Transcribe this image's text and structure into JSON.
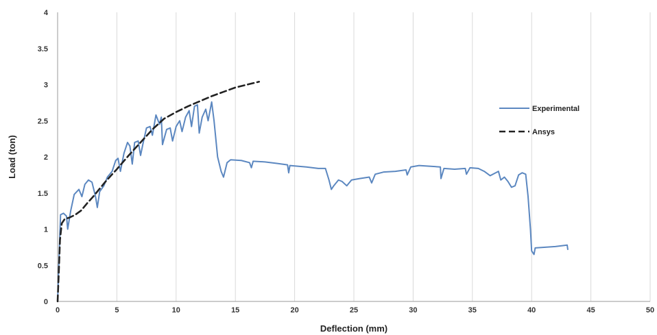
{
  "chart_data": {
    "type": "line",
    "title": "",
    "xlabel": "Deflection (mm)",
    "ylabel": "Load (ton)",
    "xlim": [
      0,
      50
    ],
    "ylim": [
      0,
      4
    ],
    "x_ticks": [
      0,
      5,
      10,
      15,
      20,
      25,
      30,
      35,
      40,
      45,
      50
    ],
    "y_ticks": [
      0,
      0.5,
      1,
      1.5,
      2,
      2.5,
      3,
      3.5,
      4
    ],
    "grid": {
      "vertical": true,
      "horizontal": false
    },
    "legend_position": "right",
    "series": [
      {
        "name": "Experimental",
        "style": "solid",
        "color": "#5b87c0",
        "points": [
          [
            0,
            0
          ],
          [
            0.12,
            0.6
          ],
          [
            0.25,
            1.2
          ],
          [
            0.5,
            1.22
          ],
          [
            0.75,
            1.18
          ],
          [
            0.85,
            1.0
          ],
          [
            1.1,
            1.25
          ],
          [
            1.4,
            1.48
          ],
          [
            1.8,
            1.55
          ],
          [
            2.05,
            1.45
          ],
          [
            2.3,
            1.62
          ],
          [
            2.6,
            1.68
          ],
          [
            2.9,
            1.65
          ],
          [
            3.2,
            1.45
          ],
          [
            3.35,
            1.3
          ],
          [
            3.55,
            1.52
          ],
          [
            3.9,
            1.6
          ],
          [
            4.2,
            1.72
          ],
          [
            4.6,
            1.8
          ],
          [
            4.9,
            1.95
          ],
          [
            5.1,
            1.98
          ],
          [
            5.3,
            1.8
          ],
          [
            5.6,
            2.05
          ],
          [
            5.9,
            2.2
          ],
          [
            6.1,
            2.15
          ],
          [
            6.3,
            1.9
          ],
          [
            6.5,
            2.2
          ],
          [
            6.8,
            2.22
          ],
          [
            7.0,
            2.02
          ],
          [
            7.2,
            2.18
          ],
          [
            7.5,
            2.4
          ],
          [
            7.8,
            2.42
          ],
          [
            8.0,
            2.3
          ],
          [
            8.3,
            2.58
          ],
          [
            8.6,
            2.45
          ],
          [
            8.75,
            2.55
          ],
          [
            8.85,
            2.17
          ],
          [
            9.2,
            2.38
          ],
          [
            9.5,
            2.4
          ],
          [
            9.7,
            2.22
          ],
          [
            10.0,
            2.42
          ],
          [
            10.3,
            2.5
          ],
          [
            10.5,
            2.35
          ],
          [
            10.8,
            2.55
          ],
          [
            11.1,
            2.64
          ],
          [
            11.3,
            2.42
          ],
          [
            11.55,
            2.7
          ],
          [
            11.8,
            2.72
          ],
          [
            11.95,
            2.33
          ],
          [
            12.2,
            2.55
          ],
          [
            12.5,
            2.66
          ],
          [
            12.7,
            2.5
          ],
          [
            13.0,
            2.76
          ],
          [
            13.2,
            2.5
          ],
          [
            13.5,
            2.0
          ],
          [
            13.8,
            1.8
          ],
          [
            14.0,
            1.72
          ],
          [
            14.3,
            1.92
          ],
          [
            14.6,
            1.96
          ],
          [
            15.5,
            1.95
          ],
          [
            16.2,
            1.92
          ],
          [
            16.35,
            1.85
          ],
          [
            16.5,
            1.94
          ],
          [
            17.5,
            1.93
          ],
          [
            18.5,
            1.91
          ],
          [
            19.4,
            1.89
          ],
          [
            19.5,
            1.78
          ],
          [
            19.6,
            1.88
          ],
          [
            21.0,
            1.86
          ],
          [
            22.0,
            1.84
          ],
          [
            22.6,
            1.84
          ],
          [
            22.9,
            1.68
          ],
          [
            23.1,
            1.55
          ],
          [
            23.3,
            1.6
          ],
          [
            23.7,
            1.68
          ],
          [
            24.0,
            1.66
          ],
          [
            24.4,
            1.6
          ],
          [
            24.8,
            1.68
          ],
          [
            25.5,
            1.7
          ],
          [
            26.3,
            1.72
          ],
          [
            26.5,
            1.64
          ],
          [
            26.8,
            1.76
          ],
          [
            27.5,
            1.79
          ],
          [
            28.5,
            1.8
          ],
          [
            29.4,
            1.82
          ],
          [
            29.5,
            1.75
          ],
          [
            29.8,
            1.86
          ],
          [
            30.5,
            1.88
          ],
          [
            31.5,
            1.87
          ],
          [
            32.3,
            1.86
          ],
          [
            32.35,
            1.7
          ],
          [
            32.6,
            1.84
          ],
          [
            33.5,
            1.83
          ],
          [
            34.4,
            1.84
          ],
          [
            34.5,
            1.76
          ],
          [
            34.8,
            1.85
          ],
          [
            35.5,
            1.84
          ],
          [
            36.0,
            1.8
          ],
          [
            36.5,
            1.74
          ],
          [
            37.2,
            1.8
          ],
          [
            37.4,
            1.68
          ],
          [
            37.7,
            1.72
          ],
          [
            38.0,
            1.66
          ],
          [
            38.3,
            1.58
          ],
          [
            38.6,
            1.6
          ],
          [
            38.9,
            1.75
          ],
          [
            39.2,
            1.78
          ],
          [
            39.5,
            1.76
          ],
          [
            39.7,
            1.45
          ],
          [
            39.9,
            1.0
          ],
          [
            40.0,
            0.7
          ],
          [
            40.2,
            0.65
          ],
          [
            40.3,
            0.74
          ],
          [
            42.0,
            0.76
          ],
          [
            43.0,
            0.78
          ],
          [
            43.05,
            0.72
          ]
        ]
      },
      {
        "name": "Ansys",
        "style": "dashed",
        "color": "#222222",
        "points": [
          [
            0,
            0
          ],
          [
            0.1,
            0.4
          ],
          [
            0.2,
            0.85
          ],
          [
            0.35,
            1.08
          ],
          [
            0.6,
            1.14
          ],
          [
            1,
            1.16
          ],
          [
            1.5,
            1.2
          ],
          [
            2,
            1.26
          ],
          [
            2.5,
            1.36
          ],
          [
            3,
            1.45
          ],
          [
            3.5,
            1.55
          ],
          [
            4,
            1.65
          ],
          [
            4.5,
            1.74
          ],
          [
            5,
            1.83
          ],
          [
            6,
            2.02
          ],
          [
            7,
            2.2
          ],
          [
            8,
            2.38
          ],
          [
            9,
            2.53
          ],
          [
            10,
            2.62
          ],
          [
            11,
            2.7
          ],
          [
            12,
            2.77
          ],
          [
            13,
            2.84
          ],
          [
            14,
            2.9
          ],
          [
            15,
            2.96
          ],
          [
            16,
            3.0
          ],
          [
            17,
            3.04
          ]
        ]
      }
    ]
  }
}
